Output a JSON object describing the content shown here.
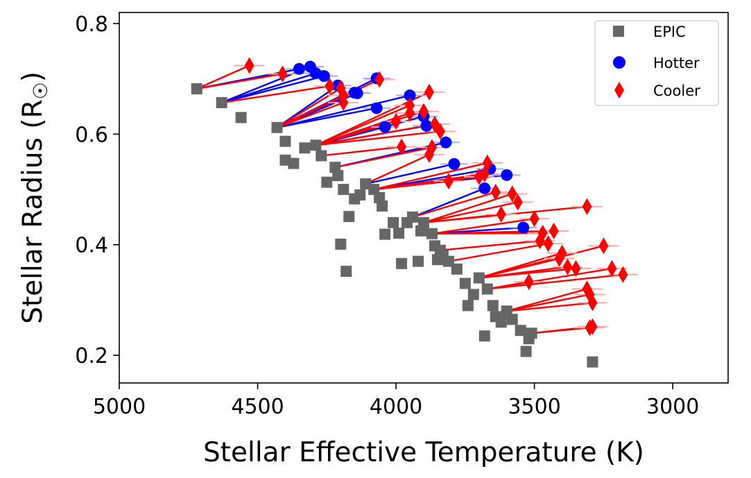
{
  "chart_data": {
    "type": "scatter",
    "title": "",
    "xlabel": "Stellar Effective Temperature (K)",
    "ylabel": "Stellar Radius (R",
    "ylabel_symbol": "☉",
    "ylabel_close": ")",
    "xlim": [
      5000,
      2800
    ],
    "ylim": [
      0.15,
      0.82
    ],
    "x_inverted": true,
    "xticks": [
      5000,
      4500,
      4000,
      3500,
      3000
    ],
    "xtick_labels": [
      "5000",
      "4500",
      "4000",
      "3500",
      "3000"
    ],
    "yticks": [
      0.2,
      0.4,
      0.6,
      0.8
    ],
    "ytick_labels": [
      "0.2",
      "0.4",
      "0.6",
      "0.8"
    ],
    "grid": false,
    "legend": {
      "position": "top-right",
      "entries": [
        {
          "label": "EPIC",
          "marker": "square",
          "color": "#666666"
        },
        {
          "label": "Hotter",
          "marker": "circle",
          "color": "#0000ff"
        },
        {
          "label": "Cooler",
          "marker": "diamond",
          "color": "#ff0000"
        }
      ]
    },
    "colors": {
      "epic": "#666666",
      "hotter": "#0000ff",
      "cooler": "#ff0000",
      "hotter_err": "#aaaaff",
      "cooler_err": "#ffaaaa"
    },
    "series": [
      {
        "name": "EPIC",
        "x": [
          4720,
          4630,
          4560,
          4430,
          4400,
          4400,
          4370,
          4330,
          4290,
          4270,
          4250,
          4220,
          4210,
          4200,
          4190,
          4180,
          4170,
          4150,
          4130,
          4110,
          4080,
          4060,
          4050,
          4040,
          4010,
          3990,
          3980,
          3960,
          3940,
          3920,
          3910,
          3900,
          3870,
          3860,
          3850,
          3840,
          3830,
          3810,
          3780,
          3750,
          3740,
          3720,
          3700,
          3680,
          3670,
          3650,
          3640,
          3620,
          3600,
          3580,
          3550,
          3530,
          3520,
          3510,
          3290
        ],
        "y": [
          0.682,
          0.657,
          0.63,
          0.612,
          0.587,
          0.553,
          0.547,
          0.575,
          0.58,
          0.561,
          0.513,
          0.54,
          0.525,
          0.401,
          0.5,
          0.352,
          0.451,
          0.483,
          0.49,
          0.51,
          0.5,
          0.485,
          0.47,
          0.419,
          0.44,
          0.421,
          0.366,
          0.44,
          0.45,
          0.37,
          0.425,
          0.44,
          0.42,
          0.398,
          0.373,
          0.39,
          0.38,
          0.37,
          0.356,
          0.33,
          0.29,
          0.31,
          0.34,
          0.235,
          0.32,
          0.29,
          0.27,
          0.26,
          0.28,
          0.265,
          0.245,
          0.207,
          0.23,
          0.24,
          0.188
        ]
      },
      {
        "name": "Hotter",
        "x": [
          4350,
          4310,
          4290,
          4260,
          4210,
          4150,
          4140,
          4070,
          4070,
          4040,
          3950,
          3900,
          3890,
          3820,
          3790,
          3680,
          3660,
          3600,
          3540
        ],
        "y": [
          0.718,
          0.722,
          0.71,
          0.705,
          0.688,
          0.675,
          0.674,
          0.701,
          0.647,
          0.613,
          0.67,
          0.632,
          0.615,
          0.585,
          0.546,
          0.502,
          0.537,
          0.526,
          0.431
        ]
      },
      {
        "name": "Cooler",
        "x": [
          4530,
          4410,
          4240,
          4200,
          4190,
          4190,
          4060,
          4000,
          3980,
          3950,
          3950,
          3900,
          3880,
          3880,
          3870,
          3860,
          3840,
          3810,
          3700,
          3680,
          3670,
          3640,
          3620,
          3580,
          3560,
          3520,
          3500,
          3480,
          3470,
          3450,
          3430,
          3410,
          3400,
          3380,
          3350,
          3310,
          3310,
          3300,
          3300,
          3290,
          3290,
          3250,
          3220,
          3180
        ],
        "y": [
          0.724,
          0.709,
          0.687,
          0.683,
          0.67,
          0.657,
          0.699,
          0.623,
          0.577,
          0.638,
          0.652,
          0.641,
          0.676,
          0.563,
          0.576,
          0.618,
          0.605,
          0.515,
          0.523,
          0.528,
          0.548,
          0.495,
          0.455,
          0.492,
          0.477,
          0.333,
          0.447,
          0.407,
          0.421,
          0.402,
          0.425,
          0.375,
          0.385,
          0.36,
          0.357,
          0.32,
          0.469,
          0.25,
          0.31,
          0.295,
          0.252,
          0.398,
          0.357,
          0.346
        ]
      }
    ]
  }
}
